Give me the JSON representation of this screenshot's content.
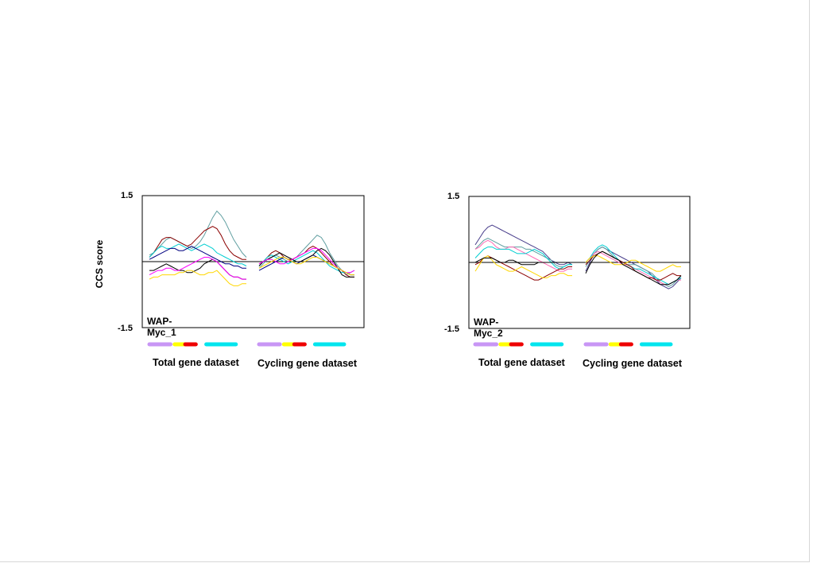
{
  "chart_data": [
    {
      "type": "line",
      "title": "",
      "ylabel": "CCS score",
      "ylim": [
        -1.5,
        1.5
      ],
      "y_tick_labels": [
        "1.5",
        "-1.5"
      ],
      "panel_label": "WAP-\nMyc_1",
      "groups": [
        {
          "name": "Total gene dataset",
          "n": 24
        },
        {
          "name": "Cycling gene dataset",
          "n": 24
        }
      ],
      "bands": [
        {
          "group": 0,
          "color": "#c896f5",
          "x0": 0,
          "x1": 5
        },
        {
          "group": 0,
          "color": "#ffff00",
          "x0": 6,
          "x1": 8.5
        },
        {
          "group": 0,
          "color": "#ee0000",
          "x0": 8.5,
          "x1": 11
        },
        {
          "group": 0,
          "color": "#00e5ee",
          "x0": 13.5,
          "x1": 20.5
        },
        {
          "group": 1,
          "color": "#c896f5",
          "x0": 0,
          "x1": 5
        },
        {
          "group": 1,
          "color": "#ffff00",
          "x0": 6,
          "x1": 8.5
        },
        {
          "group": 1,
          "color": "#ee0000",
          "x0": 8.5,
          "x1": 11
        },
        {
          "group": 1,
          "color": "#00e5ee",
          "x0": 13.5,
          "x1": 20.5
        }
      ],
      "series": [
        {
          "color": "#5f9ea0",
          "total": [
            0.15,
            0.2,
            0.3,
            0.4,
            0.5,
            0.55,
            0.5,
            0.45,
            0.4,
            0.35,
            0.3,
            0.35,
            0.45,
            0.6,
            0.8,
            1.0,
            1.15,
            1.05,
            0.9,
            0.7,
            0.5,
            0.35,
            0.2,
            0.1
          ],
          "cycling": [
            -0.15,
            -0.05,
            0.05,
            0.1,
            0.15,
            0.1,
            0.05,
            0,
            0.05,
            0.1,
            0.2,
            0.3,
            0.4,
            0.5,
            0.6,
            0.55,
            0.4,
            0.2,
            0.05,
            -0.1,
            -0.2,
            -0.3,
            -0.25,
            -0.2
          ]
        },
        {
          "color": "#8b0000",
          "total": [
            0.1,
            0.2,
            0.35,
            0.5,
            0.55,
            0.55,
            0.5,
            0.45,
            0.4,
            0.35,
            0.4,
            0.5,
            0.6,
            0.7,
            0.75,
            0.8,
            0.75,
            0.6,
            0.4,
            0.25,
            0.15,
            0.1,
            0.05,
            0.05
          ],
          "cycling": [
            -0.05,
            0,
            0.1,
            0.2,
            0.25,
            0.2,
            0.1,
            0.05,
            0.05,
            0.1,
            0.15,
            0.2,
            0.3,
            0.35,
            0.3,
            0.2,
            0.1,
            0,
            -0.1,
            -0.15,
            -0.2,
            -0.3,
            -0.35,
            -0.35
          ]
        },
        {
          "color": "#00ced1",
          "total": [
            0.1,
            0.2,
            0.3,
            0.35,
            0.3,
            0.3,
            0.35,
            0.4,
            0.35,
            0.3,
            0.25,
            0.3,
            0.35,
            0.4,
            0.35,
            0.3,
            0.2,
            0.15,
            0.1,
            0.05,
            0,
            -0.05,
            -0.05,
            -0.1
          ],
          "cycling": [
            -0.1,
            0,
            0.1,
            0.15,
            0.1,
            0.05,
            0,
            -0.05,
            0,
            0.05,
            0.1,
            0.15,
            0.2,
            0.25,
            0.2,
            0.1,
            0,
            -0.1,
            -0.15,
            -0.2,
            -0.25,
            -0.25,
            -0.3,
            -0.3
          ]
        },
        {
          "color": "#000080",
          "total": [
            0.05,
            0.1,
            0.15,
            0.2,
            0.25,
            0.3,
            0.3,
            0.25,
            0.25,
            0.3,
            0.35,
            0.3,
            0.25,
            0.2,
            0.15,
            0.1,
            0.05,
            0,
            -0.05,
            -0.05,
            -0.1,
            -0.1,
            -0.15,
            -0.15
          ],
          "cycling": [
            -0.2,
            -0.15,
            -0.1,
            -0.05,
            0,
            0.05,
            0.1,
            0.05,
            0,
            -0.05,
            0,
            0.05,
            0.1,
            0.15,
            0.1,
            0.05,
            0,
            -0.05,
            -0.1,
            -0.15,
            -0.2,
            -0.25,
            -0.3,
            -0.3
          ]
        },
        {
          "color": "#000000",
          "total": [
            -0.2,
            -0.2,
            -0.15,
            -0.1,
            -0.05,
            -0.1,
            -0.15,
            -0.2,
            -0.2,
            -0.25,
            -0.25,
            -0.2,
            -0.15,
            -0.05,
            0,
            0.05,
            0,
            -0.1,
            -0.2,
            -0.3,
            -0.35,
            -0.35,
            -0.4,
            -0.4
          ],
          "cycling": [
            -0.1,
            0,
            0.05,
            0.1,
            0.15,
            0.2,
            0.15,
            0.1,
            0.05,
            0,
            0,
            0.05,
            0.1,
            0.15,
            0.25,
            0.3,
            0.25,
            0.15,
            0,
            -0.15,
            -0.3,
            -0.35,
            -0.35,
            -0.35
          ]
        },
        {
          "color": "#ff00ff",
          "total": [
            -0.3,
            -0.25,
            -0.2,
            -0.2,
            -0.15,
            -0.15,
            -0.2,
            -0.2,
            -0.15,
            -0.1,
            -0.05,
            0,
            0.05,
            0.1,
            0.1,
            0.05,
            0,
            -0.1,
            -0.2,
            -0.3,
            -0.35,
            -0.35,
            -0.4,
            -0.4
          ],
          "cycling": [
            -0.05,
            0,
            0.05,
            0.05,
            0,
            -0.05,
            -0.05,
            0,
            0.05,
            0.1,
            0.15,
            0.2,
            0.25,
            0.3,
            0.3,
            0.25,
            0.15,
            0.05,
            -0.05,
            -0.15,
            -0.2,
            -0.25,
            -0.25,
            -0.2
          ]
        },
        {
          "color": "#ffd700",
          "total": [
            -0.4,
            -0.35,
            -0.35,
            -0.3,
            -0.3,
            -0.3,
            -0.3,
            -0.25,
            -0.25,
            -0.2,
            -0.2,
            -0.25,
            -0.3,
            -0.3,
            -0.25,
            -0.25,
            -0.2,
            -0.3,
            -0.4,
            -0.5,
            -0.55,
            -0.55,
            -0.5,
            -0.5
          ],
          "cycling": [
            -0.15,
            -0.1,
            -0.05,
            0,
            0.05,
            0.1,
            0.1,
            0.05,
            0,
            -0.05,
            -0.05,
            0,
            0.05,
            0.1,
            0.1,
            0.05,
            0,
            -0.05,
            -0.1,
            -0.15,
            -0.2,
            -0.25,
            -0.3,
            -0.3
          ]
        }
      ]
    },
    {
      "type": "line",
      "title": "",
      "ylabel": "",
      "ylim": [
        -1.5,
        1.5
      ],
      "y_tick_labels": [
        "1.5",
        "-1.5"
      ],
      "panel_label": "WAP-\nMyc_2",
      "groups": [
        {
          "name": "Total gene dataset",
          "n": 24
        },
        {
          "name": "Cycling gene dataset",
          "n": 24
        }
      ],
      "bands": [
        {
          "group": 0,
          "color": "#c896f5",
          "x0": 0,
          "x1": 5
        },
        {
          "group": 0,
          "color": "#ffff00",
          "x0": 6,
          "x1": 8.5
        },
        {
          "group": 0,
          "color": "#ee0000",
          "x0": 8.5,
          "x1": 11
        },
        {
          "group": 0,
          "color": "#00e5ee",
          "x0": 13.5,
          "x1": 20.5
        },
        {
          "group": 1,
          "color": "#c896f5",
          "x0": 0,
          "x1": 5
        },
        {
          "group": 1,
          "color": "#ffff00",
          "x0": 6,
          "x1": 8.5
        },
        {
          "group": 1,
          "color": "#ee0000",
          "x0": 8.5,
          "x1": 11
        },
        {
          "group": 1,
          "color": "#00e5ee",
          "x0": 13.5,
          "x1": 20.5
        }
      ],
      "series": [
        {
          "color": "#483d8b",
          "total": [
            0.4,
            0.55,
            0.7,
            0.8,
            0.85,
            0.8,
            0.75,
            0.7,
            0.65,
            0.6,
            0.55,
            0.5,
            0.45,
            0.4,
            0.35,
            0.3,
            0.25,
            0.15,
            0.05,
            0,
            -0.05,
            -0.05,
            0,
            -0.05
          ],
          "cycling": [
            -0.2,
            0,
            0.2,
            0.3,
            0.35,
            0.3,
            0.25,
            0.2,
            0.15,
            0.1,
            0.05,
            0,
            -0.05,
            -0.1,
            -0.15,
            -0.2,
            -0.3,
            -0.4,
            -0.5,
            -0.55,
            -0.6,
            -0.55,
            -0.45,
            -0.35
          ]
        },
        {
          "color": "#5f9ea0",
          "total": [
            0.3,
            0.4,
            0.5,
            0.55,
            0.5,
            0.45,
            0.4,
            0.35,
            0.35,
            0.35,
            0.35,
            0.35,
            0.3,
            0.3,
            0.25,
            0.2,
            0.15,
            0.1,
            0.05,
            -0.05,
            -0.1,
            -0.1,
            -0.05,
            -0.05
          ],
          "cycling": [
            -0.1,
            0.05,
            0.2,
            0.3,
            0.35,
            0.3,
            0.2,
            0.1,
            0.05,
            0,
            -0.05,
            -0.05,
            -0.05,
            -0.1,
            -0.15,
            -0.2,
            -0.25,
            -0.35,
            -0.45,
            -0.5,
            -0.55,
            -0.5,
            -0.4,
            -0.3
          ]
        },
        {
          "color": "#ff69b4",
          "total": [
            0.3,
            0.35,
            0.45,
            0.5,
            0.45,
            0.35,
            0.3,
            0.3,
            0.35,
            0.35,
            0.3,
            0.25,
            0.2,
            0.15,
            0.1,
            0.05,
            0,
            -0.05,
            -0.1,
            -0.15,
            -0.2,
            -0.2,
            -0.15,
            -0.15
          ],
          "cycling": [
            0,
            0.1,
            0.2,
            0.25,
            0.2,
            0.15,
            0.1,
            0.05,
            0,
            -0.05,
            -0.05,
            -0.1,
            -0.15,
            -0.2,
            -0.25,
            -0.3,
            -0.35,
            -0.4,
            -0.45,
            -0.5,
            -0.5,
            -0.45,
            -0.4,
            -0.4
          ]
        },
        {
          "color": "#00ced1",
          "total": [
            0.1,
            0.2,
            0.3,
            0.35,
            0.35,
            0.3,
            0.3,
            0.3,
            0.3,
            0.25,
            0.2,
            0.2,
            0.2,
            0.25,
            0.3,
            0.25,
            0.2,
            0.1,
            0,
            -0.1,
            -0.15,
            -0.1,
            -0.05,
            -0.05
          ],
          "cycling": [
            0,
            0.1,
            0.25,
            0.35,
            0.4,
            0.35,
            0.25,
            0.15,
            0.05,
            0,
            -0.05,
            -0.1,
            -0.15,
            -0.15,
            -0.2,
            -0.25,
            -0.3,
            -0.35,
            -0.4,
            -0.45,
            -0.5,
            -0.45,
            -0.4,
            -0.35
          ]
        },
        {
          "color": "#8b0000",
          "total": [
            -0.05,
            0,
            0.1,
            0.15,
            0.1,
            0.05,
            0,
            -0.05,
            -0.1,
            -0.15,
            -0.2,
            -0.25,
            -0.3,
            -0.35,
            -0.4,
            -0.4,
            -0.35,
            -0.3,
            -0.25,
            -0.2,
            -0.15,
            -0.15,
            -0.1,
            -0.1
          ],
          "cycling": [
            -0.05,
            0.05,
            0.15,
            0.2,
            0.25,
            0.2,
            0.15,
            0.1,
            0.05,
            0,
            -0.05,
            -0.1,
            -0.2,
            -0.25,
            -0.3,
            -0.35,
            -0.35,
            -0.4,
            -0.4,
            -0.35,
            -0.3,
            -0.25,
            -0.3,
            -0.3
          ]
        },
        {
          "color": "#ffd700",
          "total": [
            -0.2,
            -0.05,
            0.1,
            0.15,
            0.05,
            -0.05,
            -0.1,
            -0.15,
            -0.2,
            -0.2,
            -0.15,
            -0.1,
            -0.15,
            -0.2,
            -0.25,
            -0.3,
            -0.35,
            -0.35,
            -0.3,
            -0.3,
            -0.25,
            -0.25,
            -0.3,
            -0.3
          ],
          "cycling": [
            0,
            0.1,
            0.15,
            0.15,
            0.1,
            0.05,
            0,
            -0.05,
            -0.05,
            -0.05,
            0,
            0.05,
            0.05,
            0,
            -0.05,
            -0.1,
            -0.15,
            -0.2,
            -0.2,
            -0.15,
            -0.1,
            -0.05,
            -0.1,
            -0.1
          ]
        },
        {
          "color": "#000000",
          "total": [
            0,
            0.05,
            0.1,
            0.1,
            0.1,
            0.05,
            0,
            0,
            0.05,
            0.05,
            0,
            -0.05,
            -0.05,
            -0.05,
            -0.05,
            0,
            0,
            0,
            0,
            0,
            0,
            0,
            0,
            0
          ],
          "cycling": [
            -0.25,
            -0.05,
            0.1,
            0.2,
            0.25,
            0.2,
            0.15,
            0.1,
            0.05,
            -0.05,
            -0.1,
            -0.15,
            -0.2,
            -0.25,
            -0.3,
            -0.35,
            -0.4,
            -0.45,
            -0.5,
            -0.5,
            -0.5,
            -0.45,
            -0.4,
            -0.3
          ]
        }
      ]
    }
  ]
}
